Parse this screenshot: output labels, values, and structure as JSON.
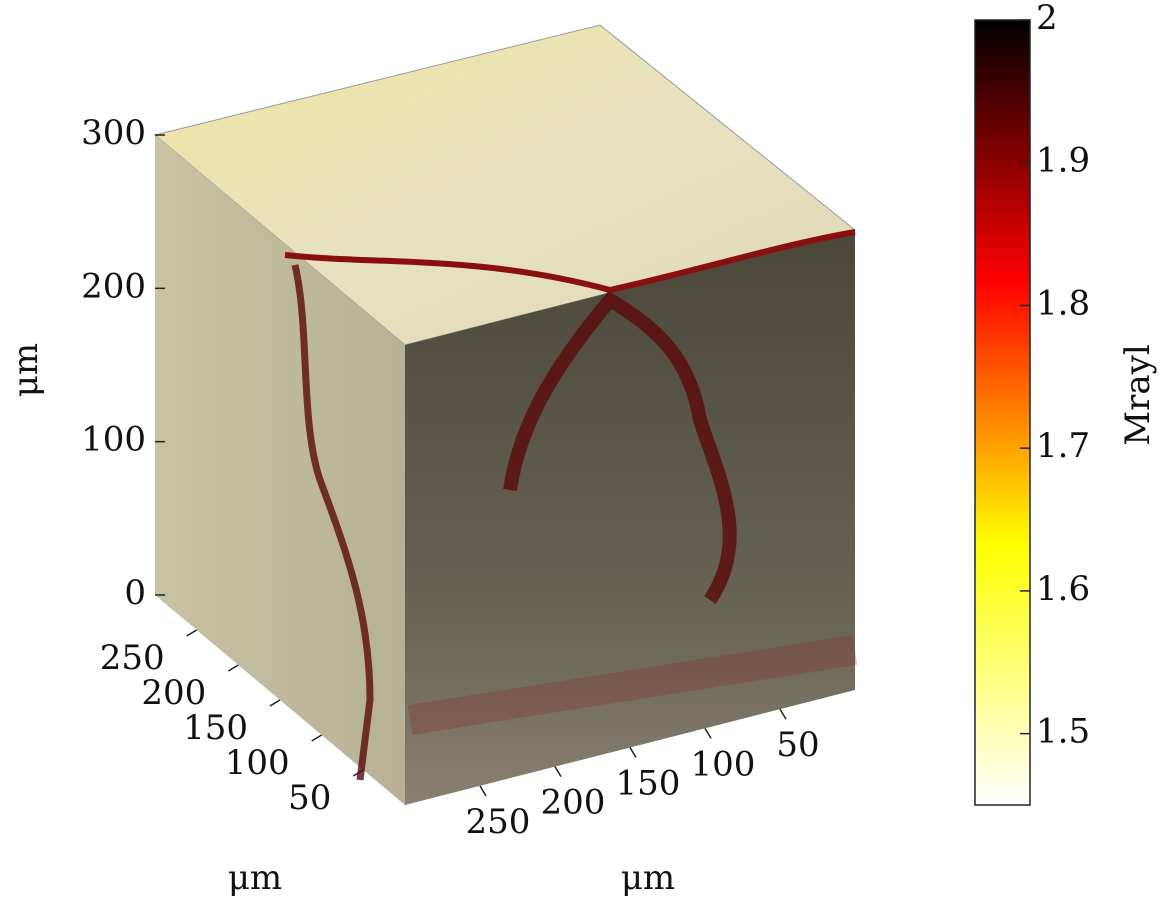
{
  "chart_data": {
    "type": "volume",
    "zlabel": "μm",
    "xlabel": "μm",
    "ylabel": "μm",
    "zlim": [
      0,
      300
    ],
    "zticks": [
      0,
      100,
      200,
      300
    ],
    "ylim": [
      0,
      300
    ],
    "yticks": [
      250,
      200,
      150,
      100,
      50
    ],
    "xlim": [
      300,
      0
    ],
    "xticks": [
      250,
      200,
      150,
      100,
      50
    ],
    "colorbar": {
      "label": "Mrayl",
      "clim": [
        1.45,
        2
      ],
      "ticks": [
        1.5,
        1.6,
        1.7,
        1.8,
        1.9,
        2
      ],
      "colormap": [
        "#ffffff",
        "#ffff00",
        "#ff0000",
        "#000000"
      ]
    }
  }
}
